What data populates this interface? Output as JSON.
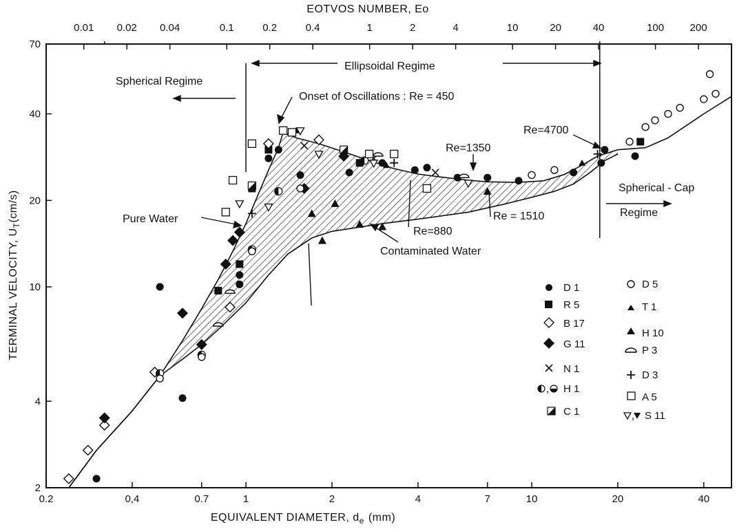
{
  "chart_data": {
    "type": "scatter",
    "xlabel": "EQUIVALENT DIAMETER, d",
    "xlabel_sub": "e",
    "xlabel_unit": "(mm)",
    "ylabel": "TERMINAL VELOCITY, U",
    "ylabel_sub": "T",
    "ylabel_unit": "(cm/s)",
    "top_axis_label": "EOTVOS NUMBER, Eo",
    "x_scale": "log",
    "y_scale": "log",
    "xlim": [
      0.2,
      50
    ],
    "ylim": [
      2,
      70
    ],
    "x_ticks": [
      {
        "v": 0.2,
        "label": "0.2"
      },
      {
        "v": 0.4,
        "label": "0,4"
      },
      {
        "v": 0.7,
        "label": "0.7"
      },
      {
        "v": 1,
        "label": "1"
      },
      {
        "v": 2,
        "label": "2"
      },
      {
        "v": 4,
        "label": "4"
      },
      {
        "v": 7,
        "label": "7"
      },
      {
        "v": 10,
        "label": "10"
      },
      {
        "v": 20,
        "label": "20"
      },
      {
        "v": 40,
        "label": "40"
      }
    ],
    "y_ticks": [
      {
        "v": 2,
        "label": "2"
      },
      {
        "v": 4,
        "label": "4"
      },
      {
        "v": 10,
        "label": "10"
      },
      {
        "v": 20,
        "label": "20"
      },
      {
        "v": 40,
        "label": "40"
      },
      {
        "v": 70,
        "label": "70"
      }
    ],
    "top_ticks": [
      {
        "v": 0.01,
        "label": "0.01"
      },
      {
        "v": 0.02,
        "label": "0.02"
      },
      {
        "v": 0.04,
        "label": "0.04"
      },
      {
        "v": 0.1,
        "label": "0.1"
      },
      {
        "v": 0.2,
        "label": "0.2"
      },
      {
        "v": 0.4,
        "label": "0.4"
      },
      {
        "v": 1,
        "label": "1"
      },
      {
        "v": 2,
        "label": "2"
      },
      {
        "v": 4,
        "label": "4"
      },
      {
        "v": 10,
        "label": "10"
      },
      {
        "v": 20,
        "label": "20"
      },
      {
        "v": 40,
        "label": "40"
      },
      {
        "v": 100,
        "label": "100"
      },
      {
        "v": 200,
        "label": "200"
      }
    ],
    "annotations": {
      "spherical_regime": "Spherical Regime",
      "ellipsoidal_regime": "Ellipsoidal Regime",
      "onset": "Onset of Oscillations : Re = 450",
      "pure_water": "Pure Water",
      "contaminated_water": "Contaminated Water",
      "spherical_cap": "Spherical - Cap",
      "regime": "Regime",
      "re_1350": "Re=1350",
      "re_4700": "Re=4700",
      "re_880": "Re=880",
      "re_1510": "Re = 1510"
    },
    "curves": [
      {
        "name": "Pure Water",
        "points": [
          [
            0.24,
            2
          ],
          [
            0.3,
            2.7
          ],
          [
            0.4,
            3.7
          ],
          [
            0.5,
            4.9
          ],
          [
            0.6,
            6.5
          ],
          [
            0.7,
            8.4
          ],
          [
            0.8,
            10.6
          ],
          [
            0.9,
            13.3
          ],
          [
            1.0,
            16.6
          ],
          [
            1.1,
            20.8
          ],
          [
            1.2,
            25.5
          ],
          [
            1.3,
            30.5
          ],
          [
            1.35,
            34.5
          ],
          [
            1.5,
            33.0
          ],
          [
            1.8,
            31.5
          ],
          [
            2.2,
            29.5
          ],
          [
            2.7,
            27.5
          ],
          [
            3.3,
            25.8
          ],
          [
            4,
            24.7
          ],
          [
            5,
            24
          ],
          [
            6,
            23.5
          ],
          [
            7,
            23.2
          ],
          [
            9,
            23.1
          ],
          [
            11,
            23.4
          ],
          [
            13,
            24.6
          ],
          [
            15,
            26.5
          ],
          [
            17,
            28.5
          ],
          [
            20,
            30
          ],
          [
            25,
            30.5
          ],
          [
            30,
            33
          ],
          [
            40,
            40
          ],
          [
            50,
            46
          ]
        ]
      },
      {
        "name": "Contaminated Water",
        "points": [
          [
            0.24,
            2
          ],
          [
            0.3,
            2.7
          ],
          [
            0.4,
            3.7
          ],
          [
            0.5,
            4.9
          ],
          [
            0.6,
            5.6
          ],
          [
            0.7,
            6.3
          ],
          [
            0.8,
            7.1
          ],
          [
            1.0,
            8.8
          ],
          [
            1.2,
            11
          ],
          [
            1.4,
            13
          ],
          [
            1.7,
            14.8
          ],
          [
            2,
            15.6
          ],
          [
            3,
            16.6
          ],
          [
            4,
            17.2
          ],
          [
            6,
            18.2
          ],
          [
            8,
            19.4
          ],
          [
            10,
            20.5
          ],
          [
            12,
            21.5
          ],
          [
            14,
            22.8
          ],
          [
            16,
            25
          ],
          [
            18,
            27.5
          ],
          [
            20,
            29
          ]
        ]
      }
    ],
    "legend": [
      {
        "label": "D 1",
        "marker": "filled-circle"
      },
      {
        "label": "R 5",
        "marker": "filled-square"
      },
      {
        "label": "B 17",
        "marker": "open-diamond"
      },
      {
        "label": "G 11",
        "marker": "filled-diamond"
      },
      {
        "label": "N 1",
        "marker": "cross"
      },
      {
        "label": "H 1",
        "marker": "half-circles",
        "prefix": ","
      },
      {
        "label": "C 1",
        "marker": "half-square"
      },
      {
        "label": "D 5",
        "marker": "open-circle"
      },
      {
        "label": "T 1",
        "marker": "filled-triangle-small"
      },
      {
        "label": "H 10",
        "marker": "filled-triangle"
      },
      {
        "label": "P 3",
        "marker": "semicircle"
      },
      {
        "label": "D 3",
        "marker": "plus"
      },
      {
        "label": "A 5",
        "marker": "open-square"
      },
      {
        "label": "S 11",
        "marker": "open-filled-down-triangles",
        "prefix": ","
      }
    ],
    "series": [
      {
        "name": "D 1",
        "marker": "filled-circle",
        "points": [
          [
            0.3,
            2.15
          ],
          [
            0.5,
            10
          ],
          [
            0.6,
            4.1
          ],
          [
            0.95,
            10.2
          ],
          [
            0.95,
            11
          ],
          [
            1.2,
            28
          ],
          [
            1.3,
            30
          ],
          [
            1.55,
            24.5
          ],
          [
            2.3,
            25
          ],
          [
            3,
            27
          ],
          [
            3.9,
            25.5
          ],
          [
            4.3,
            26
          ],
          [
            5.5,
            24
          ],
          [
            7,
            24
          ],
          [
            9,
            23.4
          ],
          [
            14,
            25
          ],
          [
            17.5,
            27
          ],
          [
            18,
            30
          ],
          [
            23,
            28.5
          ]
        ]
      },
      {
        "name": "R 5",
        "marker": "filled-square",
        "points": [
          [
            0.8,
            9.7
          ],
          [
            0.95,
            12
          ],
          [
            1.05,
            22
          ],
          [
            1.2,
            30
          ],
          [
            2.5,
            27
          ],
          [
            24,
            32
          ]
        ]
      },
      {
        "name": "B 17",
        "marker": "open-diamond",
        "points": [
          [
            0.24,
            2.15
          ],
          [
            0.28,
            2.7
          ],
          [
            0.32,
            3.3
          ],
          [
            0.48,
            5.05
          ],
          [
            0.88,
            8.5
          ],
          [
            1.2,
            31.5
          ],
          [
            1.8,
            32.5
          ]
        ]
      },
      {
        "name": "G 11",
        "marker": "filled-diamond",
        "points": [
          [
            0.32,
            3.5
          ],
          [
            0.6,
            8.1
          ],
          [
            0.7,
            6.3
          ],
          [
            0.85,
            12
          ],
          [
            0.9,
            14.5
          ],
          [
            0.95,
            15.5
          ],
          [
            1.6,
            22
          ],
          [
            2.2,
            28.5
          ]
        ]
      },
      {
        "name": "N 1",
        "marker": "cross",
        "points": [
          [
            1.6,
            31
          ],
          [
            2.8,
            28
          ],
          [
            4.6,
            25
          ]
        ]
      },
      {
        "name": "H 1",
        "marker": "half-circle",
        "points": [
          [
            0.5,
            5
          ],
          [
            0.7,
            5.8
          ],
          [
            1.05,
            13.5
          ],
          [
            1.3,
            21.5
          ],
          [
            2.6,
            27.5
          ]
        ]
      },
      {
        "name": "C 1",
        "marker": "half-square",
        "points": [
          [
            1.05,
            22.5
          ],
          [
            2.2,
            30
          ]
        ]
      },
      {
        "name": "D 5",
        "marker": "open-circle",
        "points": [
          [
            0.5,
            4.8
          ],
          [
            0.7,
            5.7
          ],
          [
            1.05,
            13.3
          ],
          [
            1.55,
            22
          ],
          [
            10,
            24.5
          ],
          [
            12,
            25.5
          ],
          [
            22,
            32
          ],
          [
            25,
            36
          ],
          [
            27,
            38
          ],
          [
            30,
            40
          ],
          [
            33,
            42
          ],
          [
            40,
            45
          ],
          [
            42,
            55
          ],
          [
            44,
            47
          ]
        ]
      },
      {
        "name": "T 1",
        "marker": "filled-triangle-small",
        "points": [
          [
            1.5,
            35
          ],
          [
            3.1,
            26.5
          ],
          [
            15,
            27
          ]
        ]
      },
      {
        "name": "H 10",
        "marker": "filled-triangle",
        "points": [
          [
            1.7,
            18
          ],
          [
            1.85,
            14.5
          ],
          [
            2.05,
            19.5
          ],
          [
            2.5,
            16.5
          ],
          [
            3,
            16.2
          ],
          [
            7,
            21.5
          ]
        ]
      },
      {
        "name": "P 3",
        "marker": "semicircle",
        "points": [
          [
            0.8,
            7.3
          ],
          [
            0.88,
            9.5
          ],
          [
            2.9,
            28.5
          ],
          [
            5.8,
            24
          ]
        ]
      },
      {
        "name": "D 3",
        "marker": "plus",
        "points": [
          [
            1.05,
            18
          ],
          [
            3.3,
            27
          ],
          [
            17,
            29
          ]
        ]
      },
      {
        "name": "A 5",
        "marker": "open-square",
        "points": [
          [
            0.85,
            18.2
          ],
          [
            0.9,
            23.5
          ],
          [
            1.05,
            31.5
          ],
          [
            1.35,
            35
          ],
          [
            1.45,
            34.5
          ],
          [
            2.7,
            29
          ],
          [
            3.3,
            29
          ],
          [
            4.3,
            22
          ]
        ]
      },
      {
        "name": "S 11",
        "marker": "down-triangle",
        "points": [
          [
            0.95,
            19.5
          ],
          [
            1.55,
            35
          ],
          [
            1.2,
            19
          ],
          [
            1.8,
            29
          ],
          [
            2.8,
            27
          ],
          [
            6,
            23
          ]
        ]
      }
    ]
  }
}
